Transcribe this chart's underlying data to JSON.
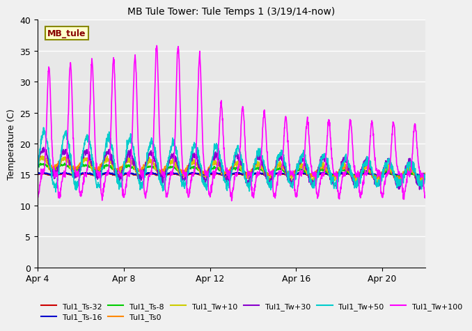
{
  "title": "MB Tule Tower: Tule Temps 1 (3/19/14-now)",
  "ylabel": "Temperature (C)",
  "ylim": [
    0,
    40
  ],
  "yticks": [
    0,
    5,
    10,
    15,
    20,
    25,
    30,
    35,
    40
  ],
  "xtick_labels": [
    "Apr 4",
    "Apr 8",
    "Apr 12",
    "Apr 16",
    "Apr 20"
  ],
  "xtick_positions": [
    0,
    4,
    8,
    12,
    16
  ],
  "xlim": [
    0,
    18
  ],
  "bg_color": "#e8e8e8",
  "fig_color": "#f0f0f0",
  "series_order": [
    "Tul1_Ts-32",
    "Tul1_Ts-16",
    "Tul1_Ts-8",
    "Tul1_Ts0",
    "Tul1_Tw+10",
    "Tul1_Tw+30",
    "Tul1_Tw+50",
    "Tul1_Tw+100"
  ],
  "series": {
    "Tul1_Ts-32": {
      "color": "#cc0000",
      "lw": 1.2
    },
    "Tul1_Ts-16": {
      "color": "#0000cc",
      "lw": 1.2
    },
    "Tul1_Ts-8": {
      "color": "#00cc00",
      "lw": 1.2
    },
    "Tul1_Ts0": {
      "color": "#ff8800",
      "lw": 1.2
    },
    "Tul1_Tw+10": {
      "color": "#cccc00",
      "lw": 1.2
    },
    "Tul1_Tw+30": {
      "color": "#8800cc",
      "lw": 1.2
    },
    "Tul1_Tw+50": {
      "color": "#00cccc",
      "lw": 1.2
    },
    "Tul1_Tw+100": {
      "color": "#ff00ff",
      "lw": 1.2
    }
  },
  "legend_label": "MB_tule",
  "legend_bg": "#ffffcc",
  "legend_border": "#888800",
  "legend_text_color": "#880000"
}
